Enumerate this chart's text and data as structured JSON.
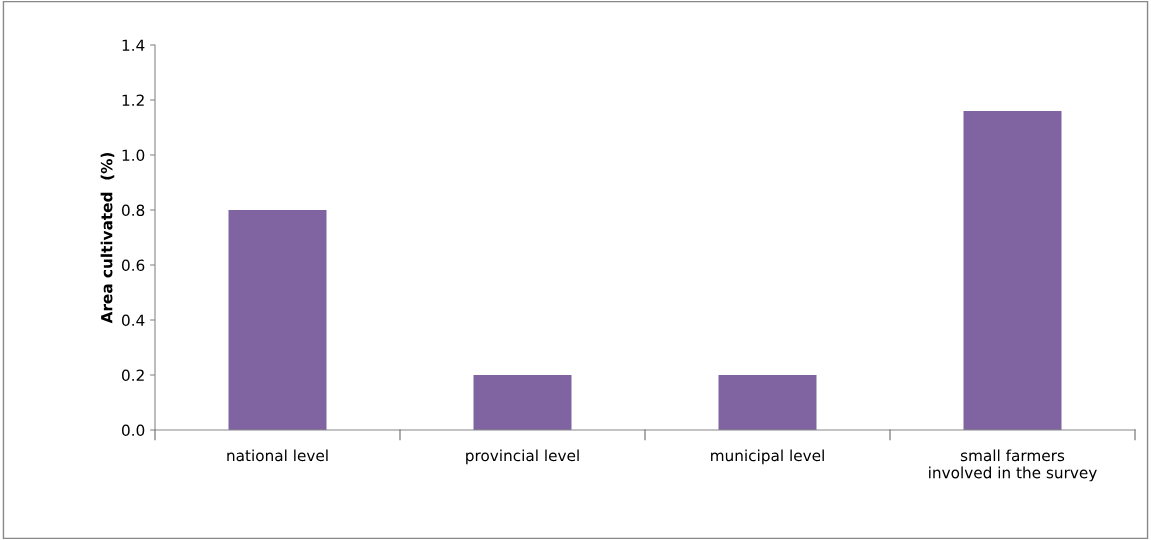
{
  "chart_data": {
    "type": "bar",
    "ylabel": "Area cultivated  (%)",
    "categories": [
      "national level",
      "provincial level",
      "municipal level",
      "small farmers\ninvolved in the survey"
    ],
    "values": [
      0.8,
      0.2,
      0.2,
      1.16
    ],
    "color": "#8064a2",
    "ylim": [
      0,
      1.4
    ],
    "yticks": [
      {
        "value": 0,
        "label": "0.0"
      },
      {
        "value": 0.2,
        "label": "0.2"
      },
      {
        "value": 0.4,
        "label": "0.4"
      },
      {
        "value": 0.6,
        "label": "0.6"
      },
      {
        "value": 0.8,
        "label": "0.8"
      },
      {
        "value": 1.0,
        "label": "1.0"
      },
      {
        "value": 1.2,
        "label": "1.2"
      },
      {
        "value": 1.4,
        "label": "1.4"
      }
    ],
    "grid": false,
    "legend": false
  }
}
